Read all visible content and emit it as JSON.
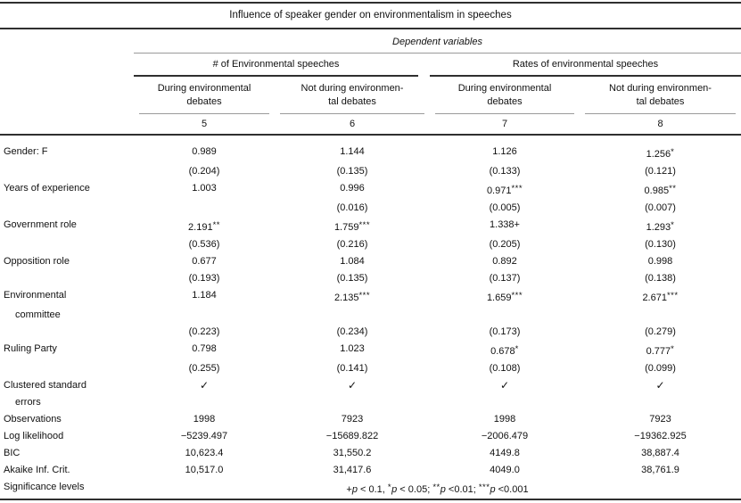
{
  "title": "Influence of speaker gender on environmentalism in speeches",
  "header": {
    "dependent_variables_label": "Dependent variables",
    "groups": [
      {
        "label": "# of Environmental speeches"
      },
      {
        "label": "Rates of environmental speeches"
      }
    ],
    "columns": [
      {
        "line1": "During environmental",
        "line2": "debates",
        "number": "5"
      },
      {
        "line1": "Not during environmen-",
        "line2": "tal debates",
        "number": "6"
      },
      {
        "line1": "During environmental",
        "line2": "debates",
        "number": "7"
      },
      {
        "line1": "Not during environmen-",
        "line2": "tal debates",
        "number": "8"
      }
    ]
  },
  "rows": [
    {
      "label": "Gender: F",
      "kind": "coef",
      "indent": false,
      "cells": [
        "0.989",
        "1.144",
        "1.126",
        "1.256*"
      ]
    },
    {
      "label": "",
      "kind": "se",
      "indent": false,
      "cells": [
        "(0.204)",
        "(0.135)",
        "(0.133)",
        "(0.121)"
      ]
    },
    {
      "label": "Years of experience",
      "kind": "coef",
      "indent": false,
      "cells": [
        "1.003",
        "0.996",
        "0.971***",
        "0.985**"
      ]
    },
    {
      "label": "",
      "kind": "se",
      "indent": false,
      "cells": [
        "",
        "(0.016)",
        "(0.005)",
        "(0.007)"
      ]
    },
    {
      "label": "Government role",
      "kind": "coef",
      "indent": false,
      "cells": [
        "2.191**",
        "1.759***",
        "1.338+",
        "1.293*"
      ]
    },
    {
      "label": "",
      "kind": "se",
      "indent": false,
      "cells": [
        "(0.536)",
        "(0.216)",
        "(0.205)",
        "(0.130)"
      ]
    },
    {
      "label": "Opposition role",
      "kind": "coef",
      "indent": false,
      "cells": [
        "0.677",
        "1.084",
        "0.892",
        "0.998"
      ]
    },
    {
      "label": "",
      "kind": "se",
      "indent": false,
      "cells": [
        "(0.193)",
        "(0.135)",
        "(0.137)",
        "(0.138)"
      ]
    },
    {
      "label": "Environmental",
      "kind": "coef",
      "indent": false,
      "cells": [
        "1.184",
        "2.135***",
        "1.659***",
        "2.671***"
      ]
    },
    {
      "label": "committee",
      "kind": "coef",
      "indent": true,
      "cells": [
        "",
        "",
        "",
        ""
      ]
    },
    {
      "label": "",
      "kind": "se",
      "indent": false,
      "cells": [
        "(0.223)",
        "(0.234)",
        "(0.173)",
        "(0.279)"
      ]
    },
    {
      "label": "Ruling Party",
      "kind": "coef",
      "indent": false,
      "cells": [
        "0.798",
        "1.023",
        "0.678*",
        "0.777*"
      ]
    },
    {
      "label": "",
      "kind": "se",
      "indent": false,
      "cells": [
        "(0.255)",
        "(0.141)",
        "(0.108)",
        "(0.099)"
      ]
    },
    {
      "label": "Clustered standard",
      "kind": "check",
      "indent": false,
      "cells": [
        "✓",
        "✓",
        "✓",
        "✓"
      ]
    },
    {
      "label": "errors",
      "kind": "stat",
      "indent": true,
      "cells": [
        "",
        "",
        "",
        ""
      ]
    },
    {
      "label": "Observations",
      "kind": "stat",
      "indent": false,
      "cells": [
        "1998",
        "7923",
        "1998",
        "7923"
      ]
    },
    {
      "label": "Log likelihood",
      "kind": "stat",
      "indent": false,
      "cells": [
        "−5239.497",
        "−15689.822",
        "−2006.479",
        "−19362.925"
      ]
    },
    {
      "label": "BIC",
      "kind": "stat",
      "indent": false,
      "cells": [
        "10,623.4",
        "31,550.2",
        "4149.8",
        "38,887.4"
      ]
    },
    {
      "label": "Akaike Inf. Crit.",
      "kind": "stat",
      "indent": false,
      "cells": [
        "10,517.0",
        "31,417.6",
        "4049.0",
        "38,761.9"
      ]
    }
  ],
  "note": {
    "label": "Significance levels",
    "parts": [
      {
        "t": "+",
        "style": "normal"
      },
      {
        "t": "p",
        "style": "italic"
      },
      {
        "t": " < 0.1, ",
        "style": "normal"
      },
      {
        "t": "*",
        "style": "sup"
      },
      {
        "t": "p",
        "style": "italic"
      },
      {
        "t": " < 0.05; ",
        "style": "normal"
      },
      {
        "t": "**",
        "style": "sup"
      },
      {
        "t": "p",
        "style": "italic"
      },
      {
        "t": " <0.01; ",
        "style": "normal"
      },
      {
        "t": "***",
        "style": "sup"
      },
      {
        "t": "p",
        "style": "italic"
      },
      {
        "t": " <0.001",
        "style": "normal"
      }
    ]
  },
  "colors": {
    "background": "#ffffff",
    "text": "#111111",
    "rule_heavy": "#2f2f2f",
    "rule_thin": "#9a9a9a"
  }
}
